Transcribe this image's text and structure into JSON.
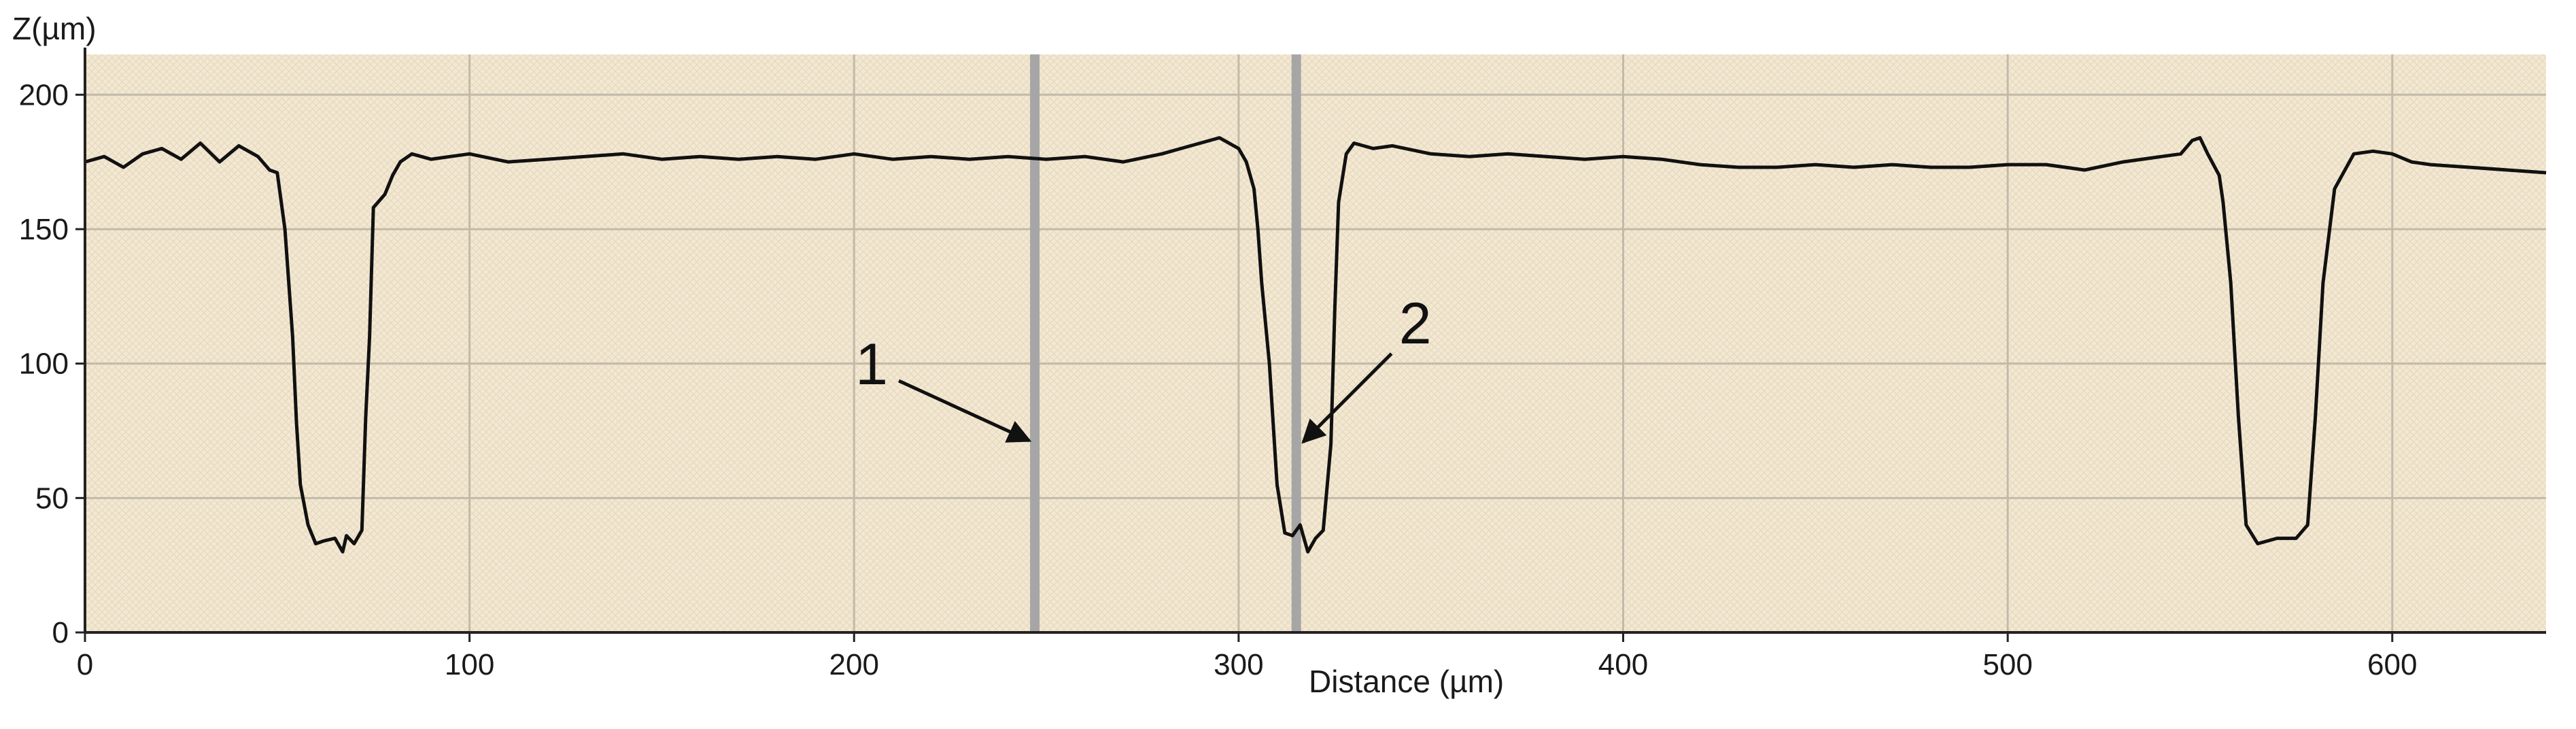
{
  "chart_data": {
    "type": "line",
    "title": "",
    "xlabel": "Distance (µm)",
    "ylabel": "Z(µm)",
    "xlim": [
      0,
      640
    ],
    "ylim": [
      0,
      215
    ],
    "x_ticks": [
      0,
      100,
      200,
      300,
      400,
      500,
      600
    ],
    "y_ticks": [
      0,
      50,
      100,
      150,
      200
    ],
    "grid": true,
    "colors": {
      "background": "#f3e8d2",
      "grid": "#c2baa9",
      "line": "#111111",
      "marker_line": "#a6a6a6"
    },
    "series": [
      {
        "x": [
          0,
          5,
          10,
          15,
          20,
          25,
          30,
          35,
          40,
          45,
          48,
          50,
          52,
          54,
          55,
          56,
          58,
          60,
          62,
          65,
          67,
          68,
          70,
          72,
          73,
          74,
          75,
          78,
          80,
          82,
          85,
          90,
          95,
          100,
          110,
          120,
          130,
          140,
          150,
          160,
          170,
          180,
          190,
          200,
          210,
          220,
          230,
          240,
          250,
          260,
          270,
          280,
          285,
          290,
          295,
          300,
          302,
          304,
          305,
          306,
          308,
          310,
          312,
          314,
          316,
          318,
          320,
          322,
          324,
          325,
          326,
          328,
          330,
          335,
          340,
          350,
          360,
          370,
          380,
          390,
          400,
          410,
          420,
          430,
          440,
          450,
          460,
          470,
          480,
          490,
          500,
          510,
          520,
          530,
          540,
          545,
          548,
          550,
          552,
          555,
          556,
          558,
          560,
          562,
          565,
          570,
          575,
          578,
          580,
          582,
          585,
          590,
          595,
          600,
          605,
          610,
          620,
          630,
          640
        ],
        "y": [
          175,
          177,
          173,
          178,
          180,
          176,
          182,
          175,
          181,
          177,
          172,
          171,
          150,
          110,
          78,
          55,
          40,
          33,
          34,
          35,
          30,
          36,
          33,
          38,
          80,
          110,
          158,
          163,
          170,
          175,
          178,
          176,
          177,
          178,
          175,
          176,
          177,
          178,
          176,
          177,
          176,
          177,
          176,
          178,
          176,
          177,
          176,
          177,
          176,
          177,
          175,
          178,
          180,
          182,
          184,
          180,
          175,
          165,
          150,
          130,
          100,
          55,
          37,
          36,
          40,
          30,
          35,
          38,
          70,
          120,
          160,
          178,
          182,
          180,
          181,
          178,
          177,
          178,
          177,
          176,
          177,
          176,
          174,
          173,
          173,
          174,
          173,
          174,
          173,
          173,
          174,
          174,
          172,
          175,
          177,
          178,
          183,
          184,
          178,
          170,
          160,
          130,
          80,
          40,
          33,
          35,
          35,
          40,
          80,
          130,
          165,
          178,
          179,
          178,
          175,
          174,
          173,
          172,
          171
        ]
      }
    ],
    "annotations": [
      {
        "label": "1",
        "x": 247
      },
      {
        "label": "2",
        "x": 315
      }
    ]
  }
}
